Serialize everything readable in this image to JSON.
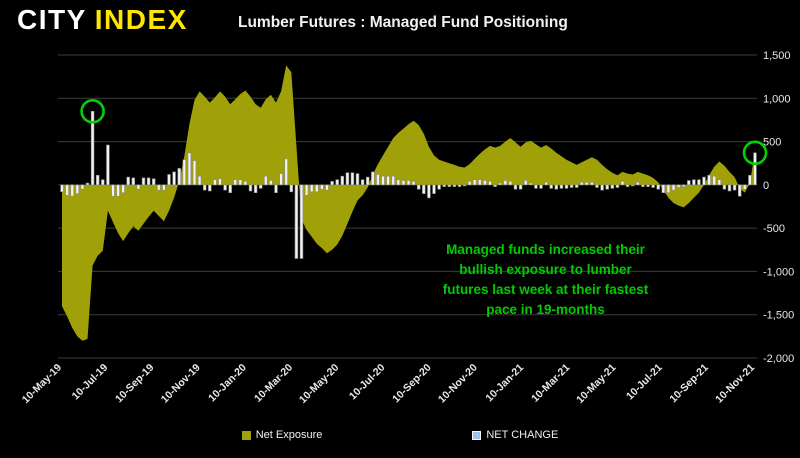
{
  "header": {
    "logo_city": "CITY",
    "logo_index": "INDEX",
    "title": "Lumber Futures : Managed Fund Positioning"
  },
  "annotation": {
    "lines": [
      "Managed funds increased their",
      "bullish exposure to lumber",
      "futures last week at their fastest",
      "pace in 19-months"
    ],
    "color": "#00CC00"
  },
  "legend": [
    {
      "label": "Net Exposure",
      "swatch_color": "#A0A008"
    },
    {
      "label": "NET CHANGE",
      "swatch_color": "#9DC3E6"
    }
  ],
  "colors": {
    "background": "#000000",
    "area_fill": "#A0A008",
    "bar_fill": "#F2F2F2",
    "bar_stroke": "#8C8C8C",
    "grid": "#3C3C3C",
    "axis_text": "#E8E8E8",
    "highlight_green": "#00D400",
    "logo_yellow": "#FFE600"
  },
  "chart_data": {
    "type": "combo",
    "x_interval": "weekly",
    "x_tick_labels": [
      "10-May-19",
      "10-Jul-19",
      "10-Sep-19",
      "10-Nov-19",
      "10-Jan-20",
      "10-Mar-20",
      "10-May-20",
      "10-Jul-20",
      "10-Sep-20",
      "10-Nov-20",
      "10-Jan-21",
      "10-Mar-21",
      "10-May-21",
      "10-Jul-21",
      "10-Sep-21",
      "10-Nov-21"
    ],
    "ylim": [
      -2000,
      1500
    ],
    "y_ticks": [
      1500,
      1000,
      500,
      0,
      -500,
      -1000,
      -1500,
      -2000
    ],
    "grid": "horizontal",
    "axis_side": "right",
    "series": [
      {
        "name": "Net Exposure",
        "type": "area",
        "color": "#A0A008",
        "values": [
          -1400,
          -1520,
          -1650,
          -1750,
          -1800,
          -1780,
          -930,
          -820,
          -760,
          -300,
          -430,
          -560,
          -650,
          -560,
          -480,
          -530,
          -450,
          -370,
          -300,
          -360,
          -420,
          -300,
          -150,
          40,
          330,
          700,
          980,
          1080,
          1020,
          950,
          1010,
          1080,
          1020,
          930,
          990,
          1050,
          1090,
          1020,
          930,
          890,
          990,
          1040,
          950,
          1080,
          1380,
          1300,
          450,
          -400,
          -520,
          -600,
          -680,
          -730,
          -790,
          -750,
          -690,
          -590,
          -450,
          -310,
          -180,
          -120,
          -30,
          120,
          240,
          340,
          440,
          540,
          600,
          650,
          700,
          740,
          690,
          590,
          440,
          340,
          290,
          270,
          250,
          230,
          210,
          200,
          240,
          300,
          360,
          410,
          450,
          430,
          450,
          500,
          540,
          490,
          440,
          490,
          510,
          470,
          430,
          460,
          420,
          370,
          330,
          290,
          260,
          230,
          260,
          290,
          320,
          290,
          230,
          180,
          140,
          110,
          150,
          130,
          120,
          150,
          130,
          110,
          80,
          30,
          -60,
          -150,
          -210,
          -240,
          -260,
          -210,
          -150,
          -90,
          0,
          110,
          210,
          270,
          220,
          150,
          90,
          -40,
          -90,
          20,
          390
        ]
      },
      {
        "name": "NET CHANGE",
        "type": "bar",
        "color": "#F2F2F2",
        "values": [
          -80,
          -120,
          -130,
          -100,
          -50,
          20,
          850,
          110,
          60,
          460,
          -130,
          -130,
          -90,
          90,
          80,
          -50,
          80,
          80,
          70,
          -60,
          -60,
          120,
          150,
          190,
          290,
          370,
          280,
          100,
          -60,
          -70,
          60,
          70,
          -60,
          -90,
          60,
          60,
          40,
          -70,
          -90,
          -40,
          100,
          50,
          -90,
          130,
          300,
          -80,
          -850,
          -850,
          -120,
          -80,
          -80,
          -50,
          -60,
          40,
          60,
          100,
          140,
          140,
          130,
          60,
          90,
          150,
          120,
          100,
          100,
          100,
          60,
          50,
          50,
          40,
          -50,
          -100,
          -150,
          -100,
          -50,
          -20,
          -20,
          -20,
          -20,
          -10,
          40,
          60,
          60,
          50,
          40,
          -20,
          20,
          50,
          40,
          -50,
          -50,
          50,
          20,
          -40,
          -40,
          30,
          -40,
          -50,
          -40,
          -40,
          -30,
          -30,
          30,
          30,
          30,
          -30,
          -60,
          -50,
          -40,
          -30,
          40,
          -20,
          -10,
          30,
          -20,
          -20,
          -30,
          -50,
          -90,
          -90,
          -60,
          -30,
          -20,
          50,
          60,
          60,
          90,
          110,
          100,
          60,
          -50,
          -70,
          -60,
          -130,
          -50,
          110,
          370
        ]
      }
    ],
    "highlighted_points": [
      {
        "series": "NET CHANGE",
        "index": 6
      },
      {
        "series": "NET CHANGE",
        "index": 136
      }
    ]
  }
}
